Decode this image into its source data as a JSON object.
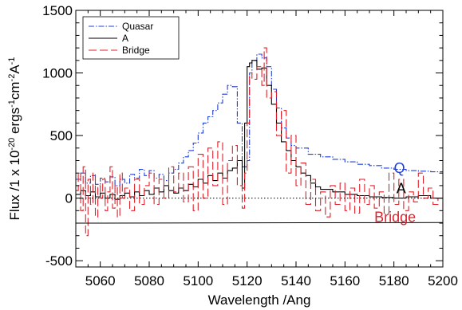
{
  "chart_data": {
    "type": "line",
    "title": "",
    "xlabel": "Wavelength /Ang",
    "ylabel_parts": {
      "prefix": "Flux /1 x 10",
      "exp1": "-20",
      "mid1": " ergs",
      "exp2": "-1",
      "mid2": "cm",
      "exp3": "-2",
      "mid3": "A",
      "exp4": "-1"
    },
    "xlim": [
      5050,
      5200
    ],
    "ylim": [
      -550,
      1500
    ],
    "x_ticks": [
      5060,
      5080,
      5100,
      5120,
      5140,
      5160,
      5180,
      5200
    ],
    "y_ticks": [
      -500,
      0,
      500,
      1000,
      1500
    ],
    "x_tick_labels": [
      "5060",
      "5080",
      "5100",
      "5120",
      "5140",
      "5160",
      "5180",
      "5200"
    ],
    "y_tick_labels": [
      "-500",
      "0",
      "500",
      "1000",
      "1500"
    ],
    "grid": false,
    "legend_position": "top-left",
    "series": [
      {
        "name": "Quasar",
        "color": "#1f3fd6",
        "dash": "dash-dot",
        "x": [
          5050,
          5052,
          5054,
          5056,
          5058,
          5060,
          5062,
          5064,
          5066,
          5068,
          5070,
          5072,
          5074,
          5076,
          5078,
          5080,
          5082,
          5084,
          5086,
          5088,
          5090,
          5092,
          5094,
          5096,
          5098,
          5100,
          5102,
          5104,
          5106,
          5108,
          5110,
          5112,
          5114,
          5116,
          5118,
          5120,
          5121,
          5122,
          5124,
          5126,
          5128,
          5130,
          5132,
          5134,
          5136,
          5138,
          5140,
          5145,
          5150,
          5155,
          5160,
          5165,
          5170,
          5175,
          5180,
          5185,
          5190,
          5195,
          5200
        ],
        "y": [
          150,
          200,
          120,
          180,
          110,
          160,
          130,
          170,
          100,
          150,
          120,
          190,
          160,
          230,
          180,
          220,
          160,
          190,
          140,
          200,
          230,
          280,
          330,
          380,
          440,
          520,
          600,
          650,
          700,
          760,
          830,
          900,
          890,
          600,
          250,
          300,
          1000,
          1100,
          1150,
          1120,
          1050,
          870,
          720,
          560,
          480,
          420,
          400,
          350,
          330,
          310,
          290,
          270,
          260,
          240,
          230,
          220,
          215,
          210,
          205
        ]
      },
      {
        "name": "A",
        "color": "#000000",
        "dash": "solid",
        "x": [
          5050,
          5052,
          5054,
          5056,
          5058,
          5060,
          5062,
          5064,
          5066,
          5068,
          5070,
          5072,
          5074,
          5076,
          5078,
          5080,
          5082,
          5084,
          5086,
          5088,
          5090,
          5092,
          5094,
          5096,
          5098,
          5100,
          5102,
          5104,
          5106,
          5108,
          5110,
          5112,
          5114,
          5116,
          5118,
          5119,
          5120,
          5121,
          5122,
          5124,
          5126,
          5128,
          5130,
          5132,
          5134,
          5136,
          5138,
          5140,
          5142,
          5144,
          5146,
          5148,
          5150,
          5155,
          5160,
          5165,
          5170,
          5175,
          5180,
          5185,
          5190,
          5195,
          5200
        ],
        "y": [
          30,
          60,
          20,
          50,
          10,
          40,
          0,
          30,
          -10,
          20,
          40,
          10,
          50,
          20,
          60,
          30,
          80,
          50,
          100,
          60,
          40,
          80,
          60,
          110,
          90,
          150,
          120,
          180,
          140,
          200,
          160,
          220,
          240,
          300,
          80,
          600,
          1050,
          1080,
          1100,
          1030,
          1040,
          900,
          750,
          600,
          450,
          380,
          300,
          250,
          200,
          180,
          120,
          90,
          70,
          50,
          30,
          20,
          10,
          5,
          0,
          10,
          20,
          0,
          -10
        ]
      },
      {
        "name": "Bridge",
        "color": "#e0202a",
        "dash": "long-dash",
        "x": [
          5050,
          5051,
          5052,
          5053,
          5054,
          5055,
          5056,
          5057,
          5058,
          5059,
          5060,
          5061,
          5062,
          5063,
          5064,
          5065,
          5066,
          5067,
          5068,
          5069,
          5070,
          5072,
          5074,
          5076,
          5078,
          5080,
          5082,
          5084,
          5086,
          5088,
          5090,
          5092,
          5094,
          5096,
          5098,
          5100,
          5102,
          5104,
          5106,
          5108,
          5110,
          5112,
          5114,
          5116,
          5118,
          5119,
          5120,
          5121,
          5122,
          5124,
          5126,
          5127,
          5128,
          5130,
          5132,
          5134,
          5136,
          5138,
          5140,
          5142,
          5144,
          5146,
          5148,
          5150,
          5152,
          5154,
          5156,
          5158,
          5160,
          5162,
          5164,
          5166,
          5168,
          5170,
          5172,
          5174,
          5176,
          5178,
          5180,
          5182,
          5184,
          5186,
          5188,
          5190,
          5192,
          5194,
          5196,
          5198,
          5200
        ],
        "y": [
          60,
          200,
          -100,
          250,
          -300,
          150,
          -50,
          200,
          -150,
          100,
          0,
          150,
          -100,
          50,
          250,
          -80,
          100,
          -150,
          200,
          0,
          80,
          -100,
          150,
          -50,
          100,
          200,
          -50,
          150,
          0,
          250,
          50,
          200,
          -30,
          250,
          -100,
          350,
          0,
          400,
          100,
          450,
          -50,
          300,
          420,
          100,
          -80,
          200,
          600,
          1000,
          950,
          1050,
          900,
          1200,
          800,
          850,
          500,
          700,
          200,
          500,
          100,
          280,
          -50,
          150,
          -100,
          50,
          -150,
          100,
          -50,
          120,
          -100,
          80,
          -120,
          150,
          -50,
          100,
          -80,
          50,
          -120,
          200,
          -50,
          150,
          -100,
          50,
          -30,
          200,
          0,
          80,
          -50,
          0,
          -100
        ]
      }
    ],
    "reference_lines": [
      {
        "label": "zero",
        "y_start": 0,
        "y_end": 0,
        "style": "dotted",
        "color": "#000000"
      },
      {
        "label": "bridge-baseline",
        "y_start": -200,
        "y_end": -195,
        "style": "solid",
        "color": "#000000"
      }
    ],
    "annotations": [
      {
        "text": "Q",
        "x": 5180,
        "y": 200,
        "color": "#1f3fd6"
      },
      {
        "text": "A",
        "x": 5181,
        "y": 40,
        "color": "#000000"
      },
      {
        "text": "Bridge",
        "x": 5172,
        "y": -190,
        "color": "#e0202a"
      }
    ]
  }
}
